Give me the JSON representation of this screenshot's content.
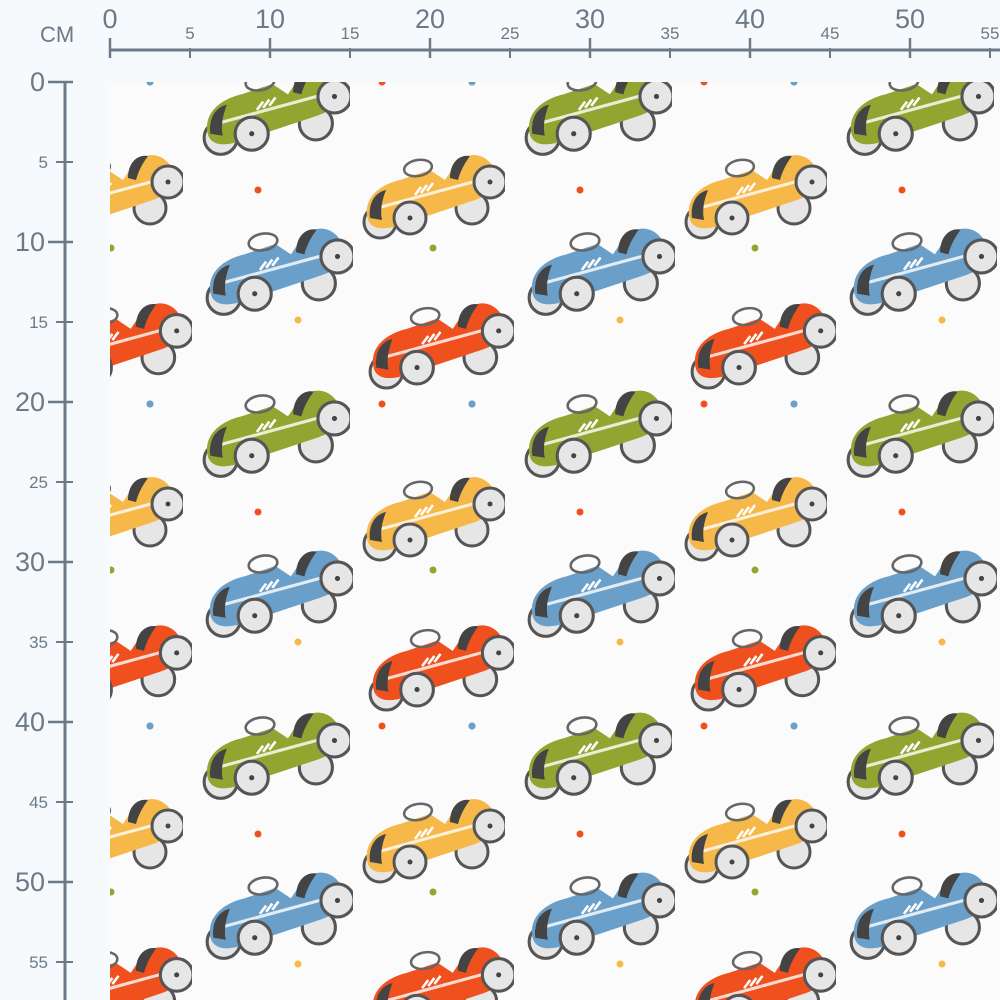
{
  "ruler": {
    "unit": "CM",
    "top_major": [
      "0",
      "10",
      "20",
      "30",
      "40",
      "50"
    ],
    "top_minor": [
      "5",
      "15",
      "25",
      "35",
      "45",
      "55"
    ],
    "left_major": [
      "0",
      "10",
      "20",
      "30",
      "40",
      "50"
    ],
    "left_minor": [
      "5",
      "15",
      "25",
      "35",
      "45",
      "55"
    ],
    "color": "#6b7a86"
  },
  "fabric": {
    "pattern": "toy racing cars with dots",
    "background": "#fbfbfb",
    "car_colors": {
      "green": "#93a531",
      "yellow": "#f7b84a",
      "blue": "#6a9fc9",
      "red": "#f0501e"
    },
    "dot_colors": {
      "red": "#f0501e",
      "green": "#93a531",
      "yellow": "#f7b84a",
      "blue": "#6a9fc9"
    }
  }
}
